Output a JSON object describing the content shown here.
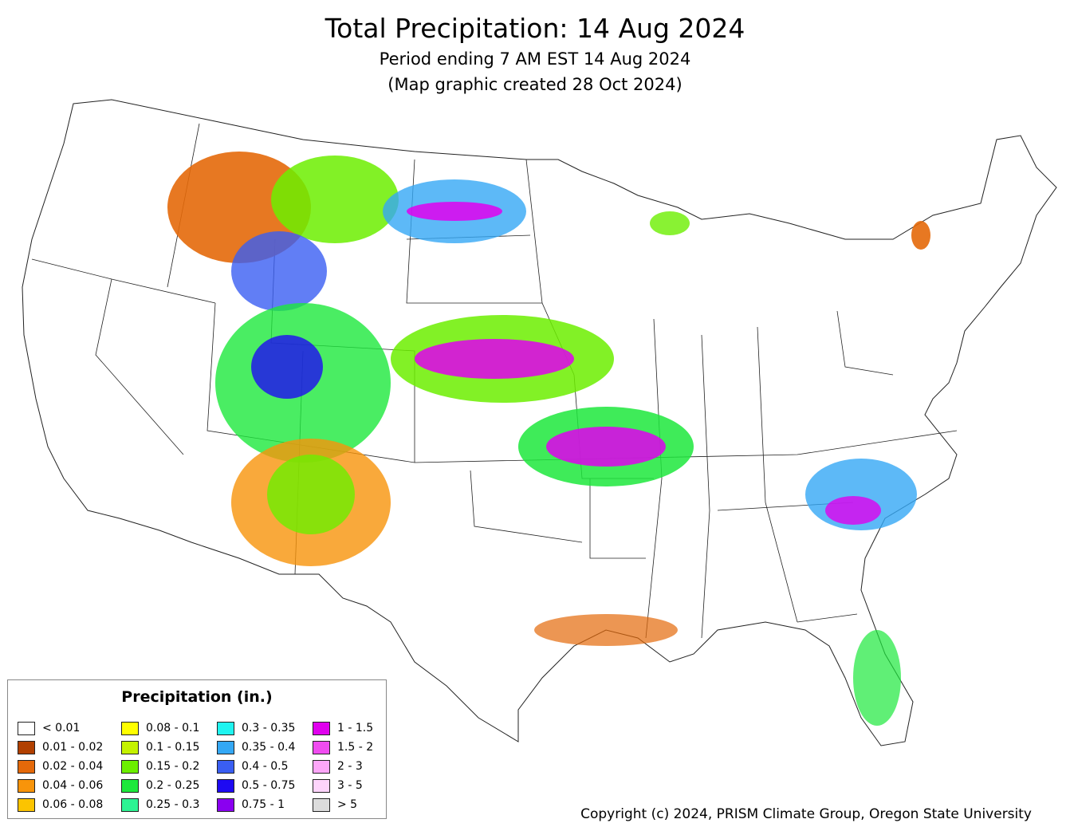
{
  "header": {
    "title": "Total Precipitation: 14 Aug 2024",
    "subtitle_period": "Period ending 7 AM EST 14 Aug 2024",
    "subtitle_created": "(Map graphic created 28 Oct 2024)"
  },
  "legend": {
    "title": "Precipitation (in.)",
    "items": [
      {
        "label": "< 0.01",
        "color": "#ffffff"
      },
      {
        "label": "0.01 - 0.02",
        "color": "#b14000"
      },
      {
        "label": "0.02 - 0.04",
        "color": "#e4690a"
      },
      {
        "label": "0.04 - 0.06",
        "color": "#f8940a"
      },
      {
        "label": "0.06 - 0.08",
        "color": "#fcc400"
      },
      {
        "label": "0.08 - 0.1",
        "color": "#ffff00"
      },
      {
        "label": "0.1 - 0.15",
        "color": "#c4f100"
      },
      {
        "label": "0.15 - 0.2",
        "color": "#6cef00"
      },
      {
        "label": "0.2 - 0.25",
        "color": "#1de83c"
      },
      {
        "label": "0.25 - 0.3",
        "color": "#2cf493"
      },
      {
        "label": "0.3 - 0.35",
        "color": "#1ff4f0"
      },
      {
        "label": "0.35 - 0.4",
        "color": "#34a8f5"
      },
      {
        "label": "0.4 - 0.5",
        "color": "#3a5ef2"
      },
      {
        "label": "0.5 - 0.75",
        "color": "#1e0af2"
      },
      {
        "label": "0.75 - 1",
        "color": "#8a00f0"
      },
      {
        "label": "1 - 1.5",
        "color": "#e000ee"
      },
      {
        "label": "1.5 - 2",
        "color": "#f04cf0"
      },
      {
        "label": "2 - 3",
        "color": "#fca6f8"
      },
      {
        "label": "3 - 5",
        "color": "#fdd4fb"
      },
      {
        "label": "> 5",
        "color": "#dcdcdc"
      }
    ]
  },
  "footer": {
    "copyright": "Copyright (c) 2024, PRISM Climate Group, Oregon State University"
  }
}
